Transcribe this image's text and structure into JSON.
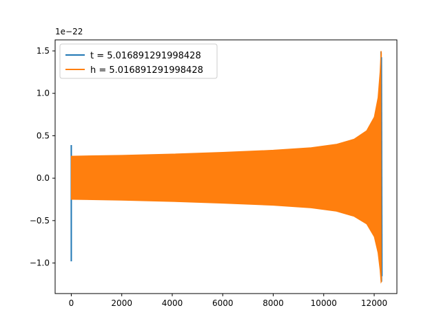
{
  "chart_data": {
    "type": "line",
    "axis_offset_label": "1e−22",
    "xlim": [
      -640,
      12900
    ],
    "ylim": [
      -1.36,
      1.63
    ],
    "x_ticks": [
      0,
      2000,
      4000,
      6000,
      8000,
      10000,
      12000
    ],
    "x_tick_labels": [
      "0",
      "2000",
      "4000",
      "6000",
      "8000",
      "10000",
      "12000"
    ],
    "y_ticks": [
      -1.0,
      -0.5,
      0.0,
      0.5,
      1.0,
      1.5
    ],
    "y_tick_labels": [
      "−1.0",
      "−0.5",
      "0.0",
      "0.5",
      "1.0",
      "1.5"
    ],
    "grid": false,
    "legend_position": "top-left",
    "series": [
      {
        "name": "t = 5.016891291998428",
        "color": "#1f77b4",
        "description": "short spike at start and end of signal",
        "points": [
          {
            "x": 0,
            "y": 0.39
          },
          {
            "x": 0,
            "y": -0.98
          },
          {
            "x": 12270,
            "y": 1.49
          },
          {
            "x": 12290,
            "y": -1.22
          }
        ]
      },
      {
        "name": "h = 5.016891291998428",
        "color": "#ff7f0e",
        "description": "chirp envelope, amplitude (upper / lower)",
        "envelope": [
          {
            "x": 0,
            "upper": 0.26,
            "lower": -0.25
          },
          {
            "x": 2000,
            "upper": 0.27,
            "lower": -0.26
          },
          {
            "x": 4000,
            "upper": 0.285,
            "lower": -0.275
          },
          {
            "x": 6000,
            "upper": 0.305,
            "lower": -0.295
          },
          {
            "x": 8000,
            "upper": 0.33,
            "lower": -0.32
          },
          {
            "x": 9500,
            "upper": 0.36,
            "lower": -0.35
          },
          {
            "x": 10500,
            "upper": 0.4,
            "lower": -0.39
          },
          {
            "x": 11200,
            "upper": 0.46,
            "lower": -0.45
          },
          {
            "x": 11700,
            "upper": 0.56,
            "lower": -0.54
          },
          {
            "x": 12000,
            "upper": 0.72,
            "lower": -0.69
          },
          {
            "x": 12150,
            "upper": 0.95,
            "lower": -0.88
          },
          {
            "x": 12230,
            "upper": 1.25,
            "lower": -1.08
          },
          {
            "x": 12270,
            "upper": 1.5,
            "lower": -1.23
          },
          {
            "x": 12290,
            "upper": 1.48,
            "lower": -1.22
          }
        ]
      }
    ]
  }
}
